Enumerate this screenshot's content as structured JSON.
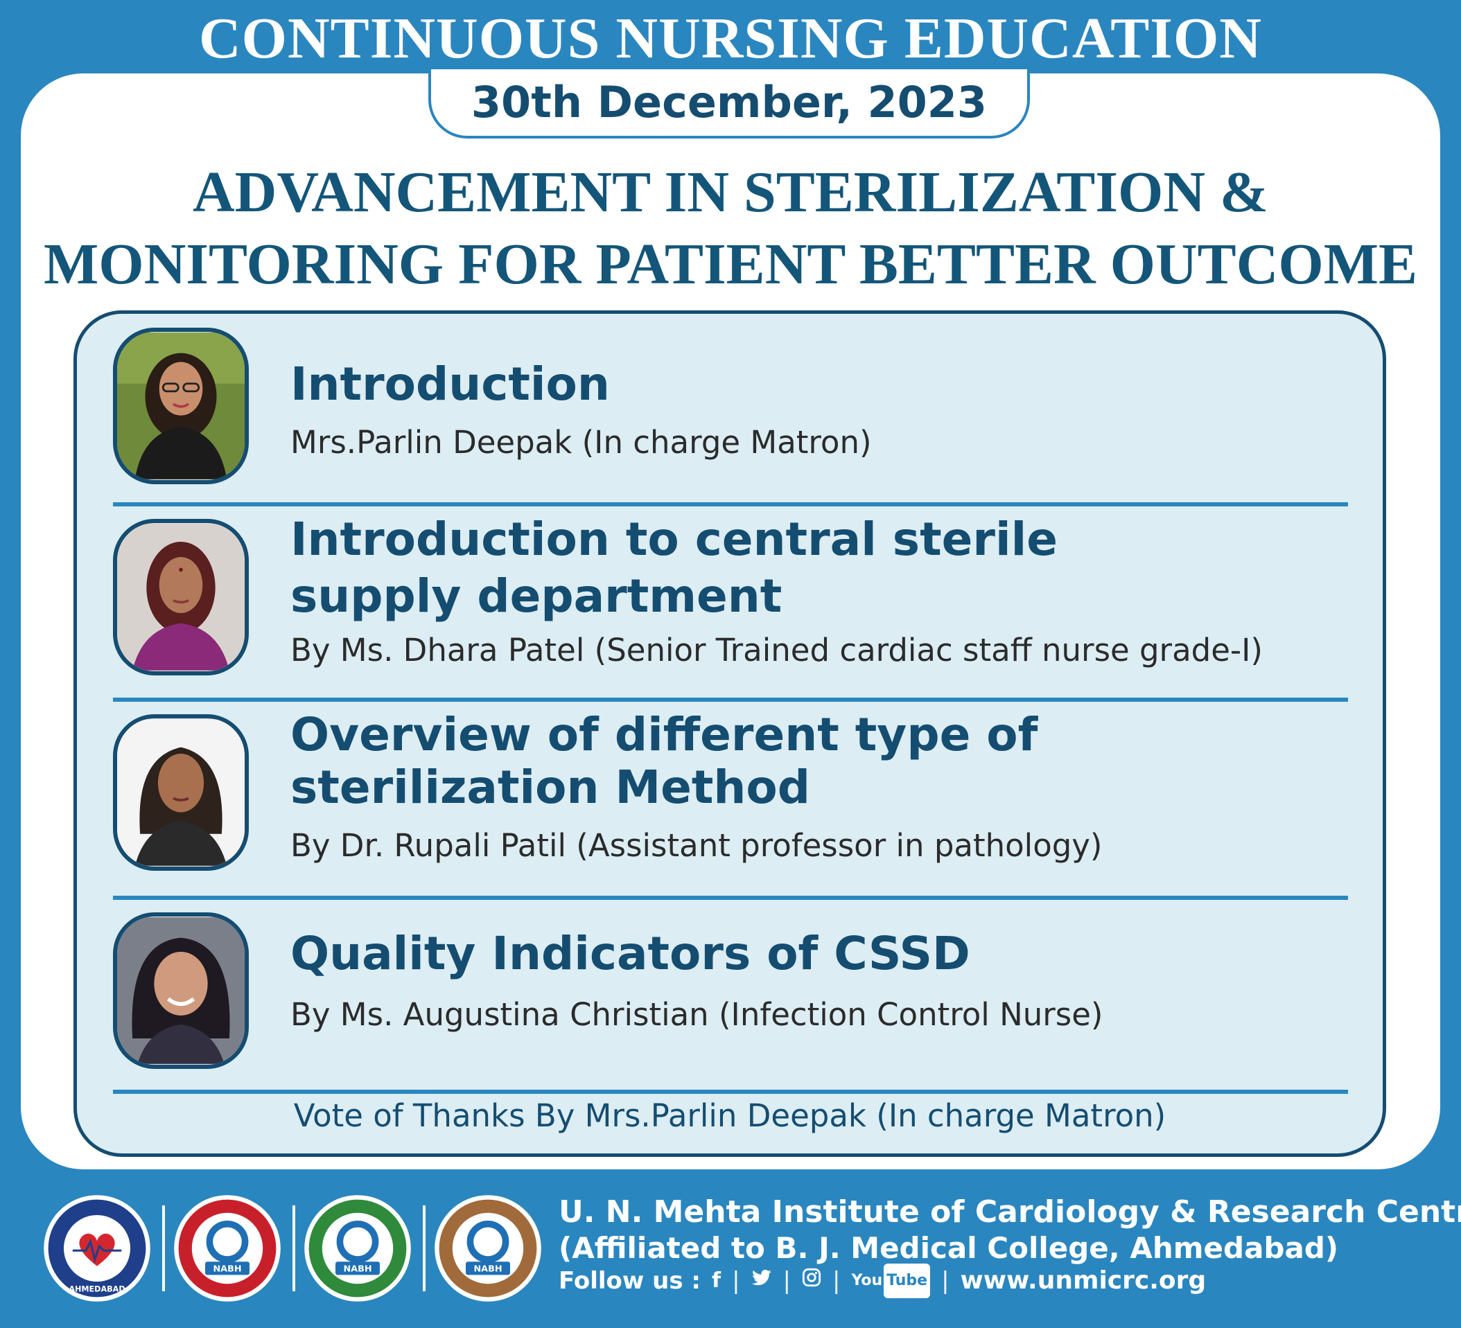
{
  "header": {
    "title": "CONTINUOUS NURSING EDUCATION",
    "date": "30th December, 2023"
  },
  "main_title": {
    "line1": "ADVANCEMENT IN STERILIZATION &",
    "line2": "MONITORING FOR PATIENT BETTER OUTCOME"
  },
  "sessions": [
    {
      "title_line1": "Introduction",
      "title_line2": "",
      "speaker": "Mrs.Parlin Deepak (In charge Matron)"
    },
    {
      "title_line1": "Introduction to central sterile",
      "title_line2": "supply department",
      "speaker": "By Ms. Dhara Patel  (Senior Trained cardiac staff nurse grade-I)"
    },
    {
      "title_line1": "Overview of different type of",
      "title_line2": "sterilization Method",
      "speaker": "By Dr. Rupali Patil (Assistant professor in pathology)"
    },
    {
      "title_line1": "Quality Indicators of CSSD",
      "title_line2": "",
      "speaker": "By Ms. Augustina Christian (Infection Control Nurse)"
    }
  ],
  "vote_of_thanks": "Vote of Thanks By Mrs.Parlin Deepak (In charge Matron)",
  "footer": {
    "institute": "U. N. Mehta Institute of Cardiology & Research Centre",
    "affiliation": "(Affiliated to B. J. Medical College, Ahmedabad)",
    "follow_label": "Follow us :",
    "social": {
      "facebook": "f",
      "twitter": "twitter-icon",
      "instagram": "instagram-icon",
      "youtube_you": "You",
      "youtube_tube": "Tube"
    },
    "website": "www.unmicrc.org"
  },
  "badges": {
    "nabh": "NABH",
    "seal_bottom": "AHMEDABAD"
  },
  "colors": {
    "primary_blue": "#2a86bf",
    "navy": "#154d71",
    "panel_bg": "#dcedf4"
  }
}
